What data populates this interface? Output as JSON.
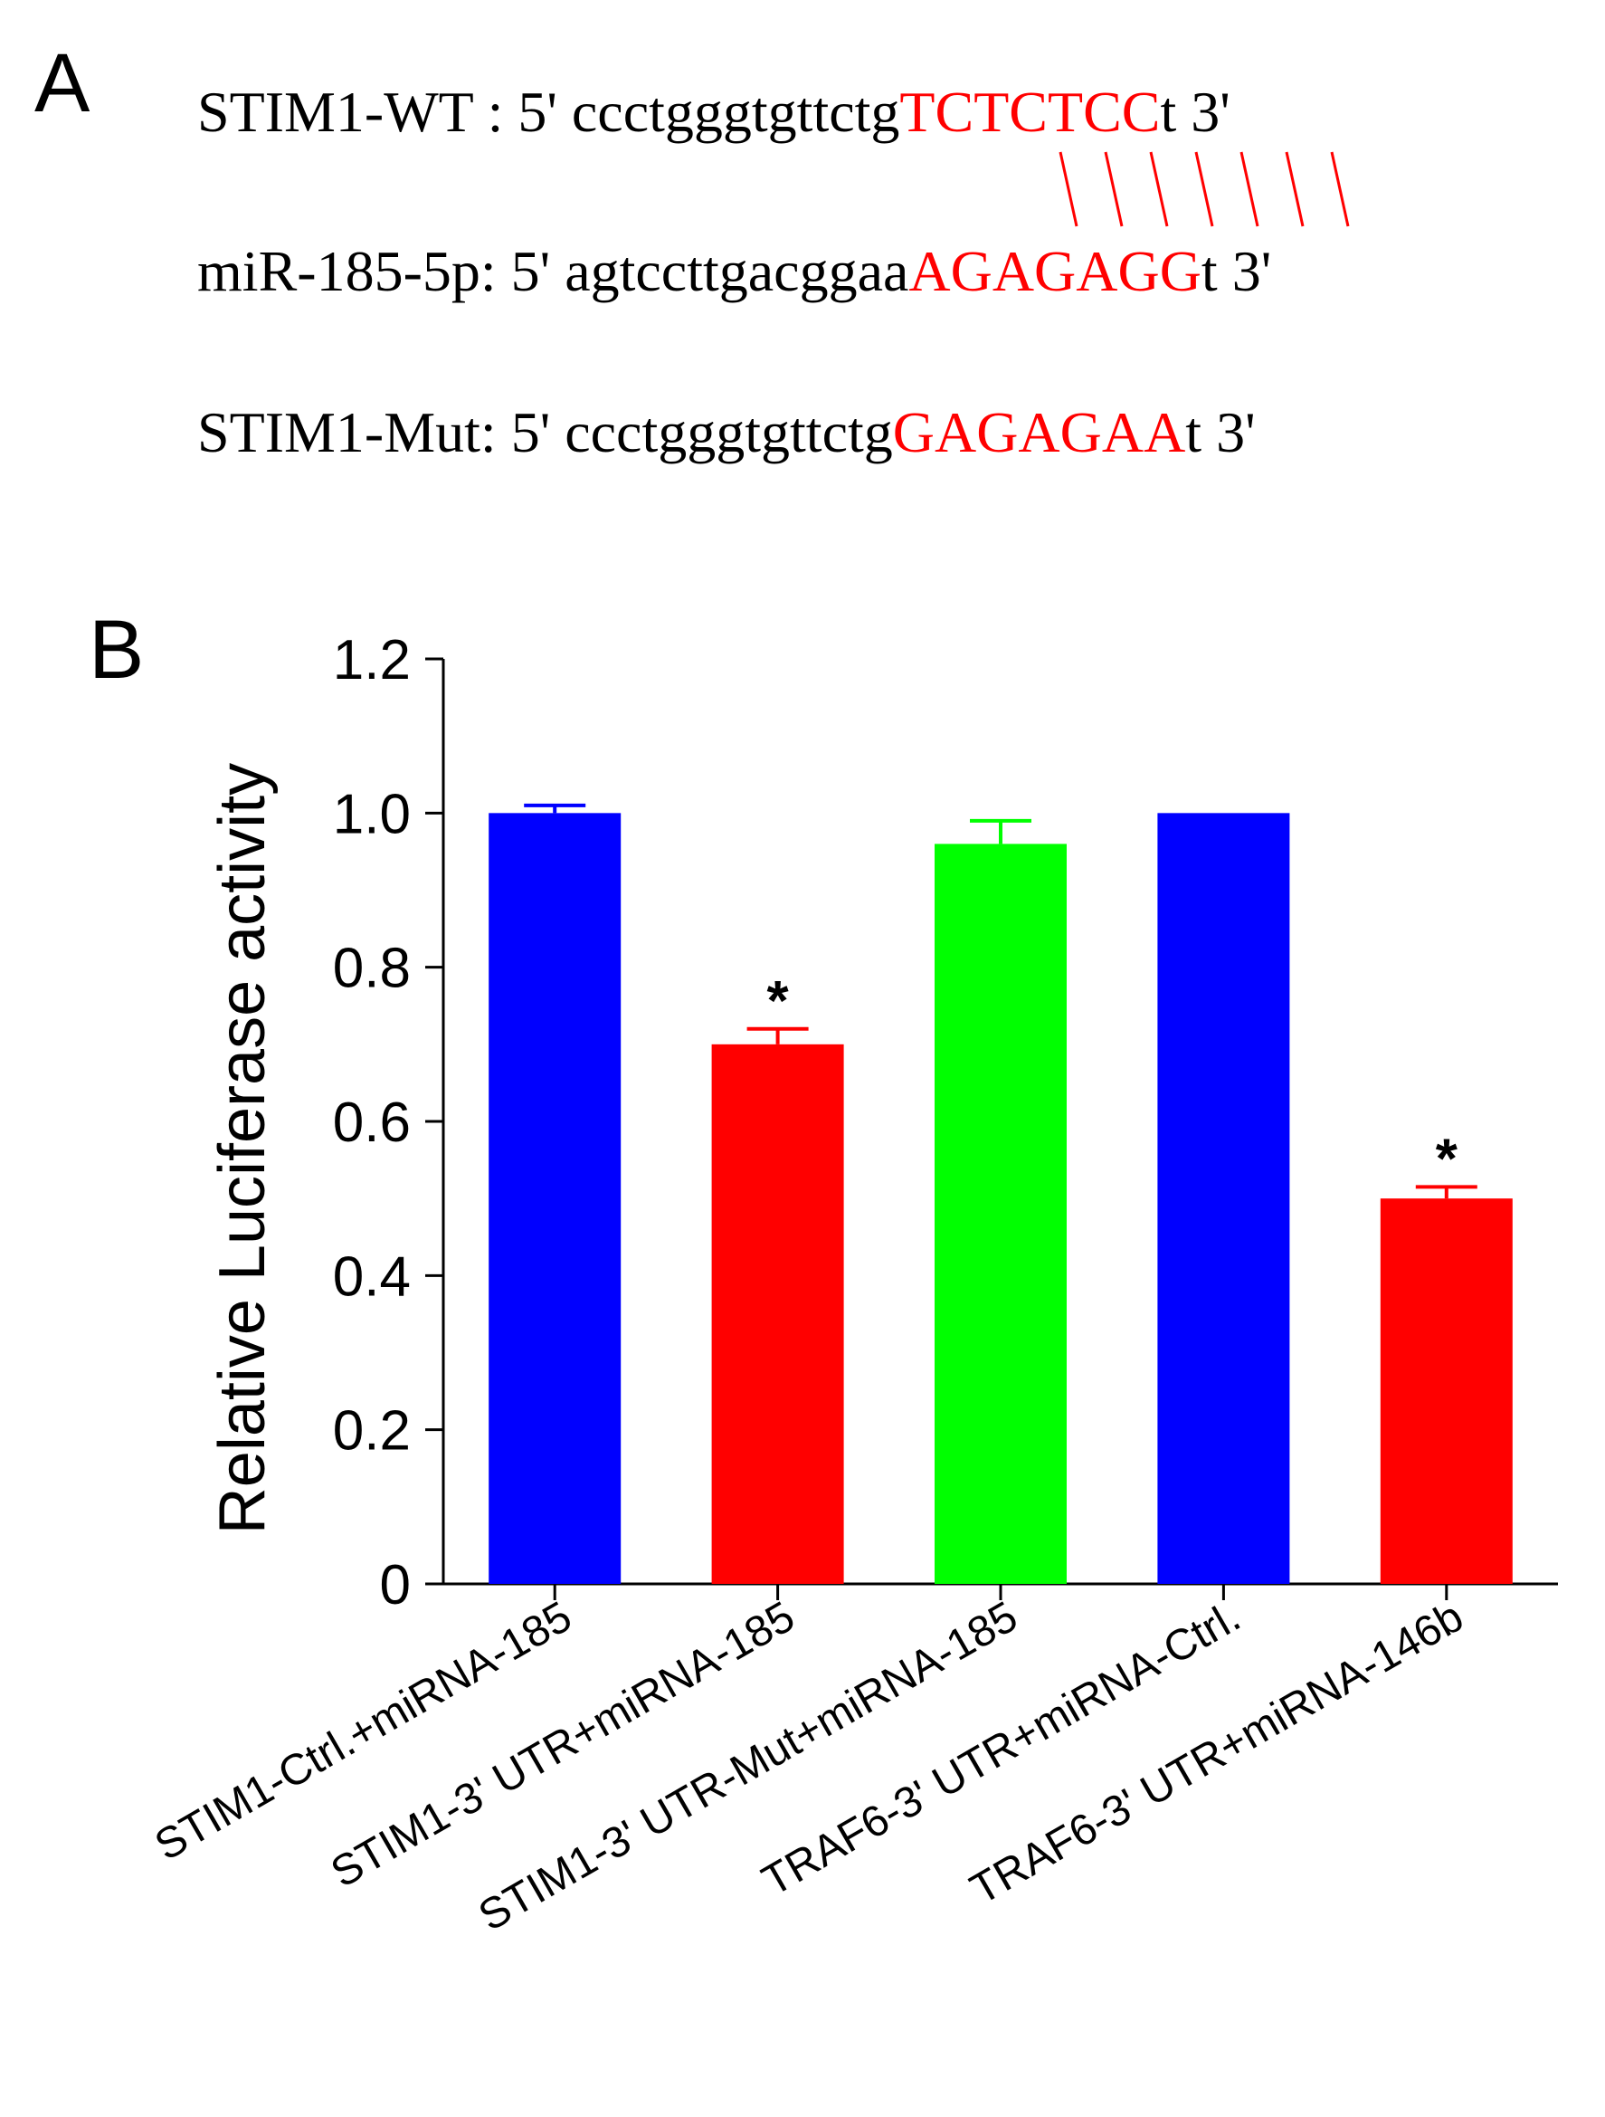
{
  "panelA": {
    "label": "A",
    "sequences": [
      {
        "prefix": "STIM1-WT : 5' ccctgggtgttctg",
        "highlight": "TCTCTCC",
        "suffix": "t 3'"
      },
      {
        "prefix": "miR-185-5p: 5' agtccttgacggaa",
        "highlight": "AGAGAGG",
        "suffix": "t 3'"
      },
      {
        "prefix": "STIM1-Mut: 5' ccctgggtgttctg",
        "highlight": "GAGAGAA",
        "suffix": "t 3'"
      }
    ],
    "pairing_count": 7
  },
  "panelB": {
    "label": "B"
  },
  "colors": {
    "blue": "#0000ff",
    "red": "#ff0000",
    "green": "#00ff00",
    "black": "#000000"
  },
  "chart_data": {
    "type": "bar",
    "title": "",
    "xlabel": "",
    "ylabel": "Relative Luciferase activity",
    "ylim": [
      0,
      1.2
    ],
    "yticks": [
      0,
      0.2,
      0.4,
      0.6,
      0.8,
      1.0,
      1.2
    ],
    "ytick_labels": [
      "0",
      "0.2",
      "0.4",
      "0.6",
      "0.8",
      "1.0",
      "1.2"
    ],
    "categories": [
      "STIM1-Ctrl.+miRNA-185",
      "STIM1-3' UTR+miRNA-185",
      "STIM1-3' UTR-Mut+miRNA-185",
      "TRAF6-3' UTR+miRNA-Ctrl.",
      "TRAF6-3' UTR+miRNA-146b"
    ],
    "values": [
      1.0,
      0.7,
      0.96,
      1.0,
      0.5
    ],
    "errors": [
      0.01,
      0.02,
      0.03,
      0.0,
      0.015
    ],
    "bar_colors": [
      "#0000ff",
      "#ff0000",
      "#00ff00",
      "#0000ff",
      "#ff0000"
    ],
    "annotations": [
      "",
      "*",
      "",
      "",
      "*"
    ]
  }
}
